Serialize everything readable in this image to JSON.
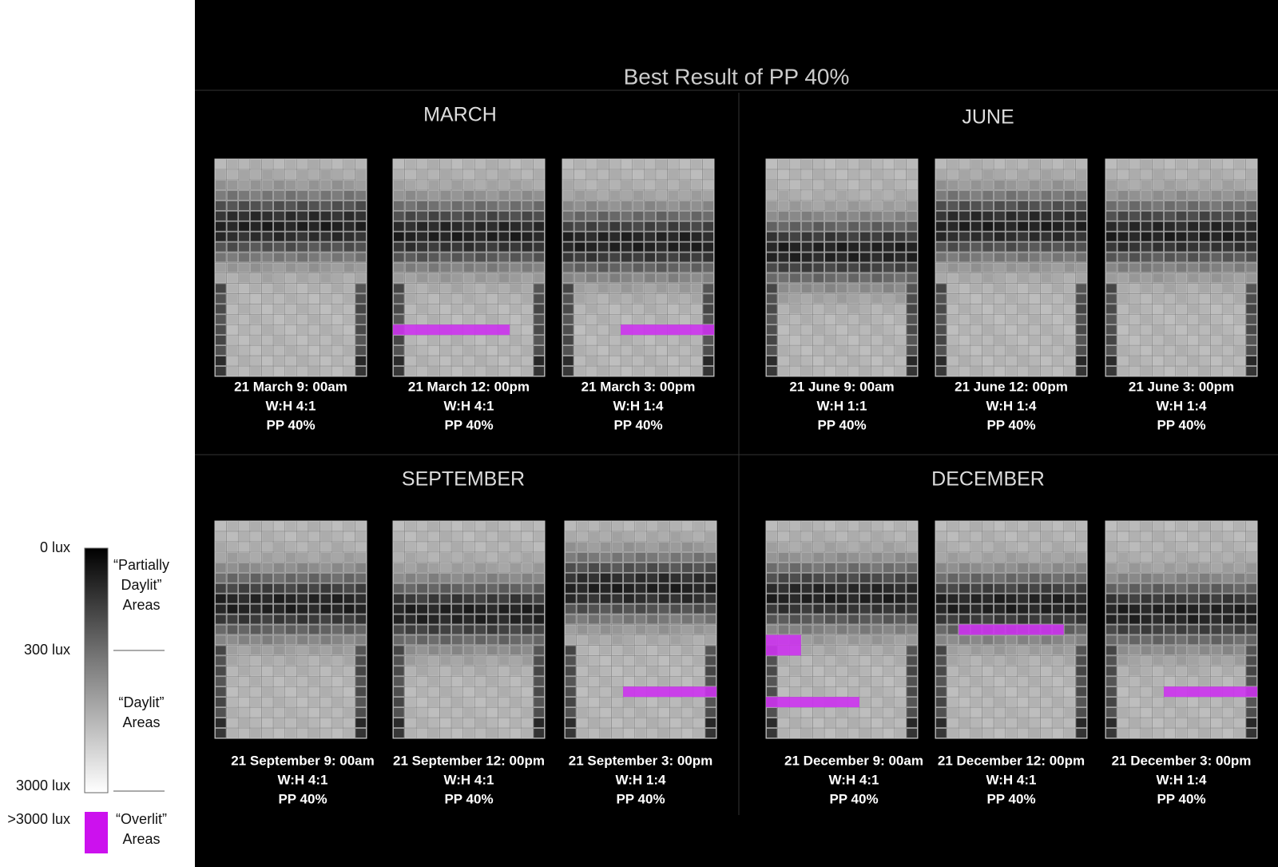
{
  "title": "Best Result of PP 40%",
  "legend": {
    "scale_labels": [
      "0 lux",
      "300 lux",
      "3000 lux",
      ">3000 lux"
    ],
    "zones": [
      [
        "“Partially",
        "Daylit”",
        "Areas"
      ],
      [
        "“Daylit”",
        "Areas"
      ],
      [
        "“Overlit”",
        "Areas"
      ]
    ]
  },
  "panels": [
    {
      "month": "MARCH",
      "cases": [
        {
          "lines": [
            "21 March 9: 00am",
            "W:H 4:1",
            "PP 40%"
          ]
        },
        {
          "lines": [
            "21 March 12: 00pm",
            "W:H 4:1",
            "PP 40%"
          ]
        },
        {
          "lines": [
            "21 March 3: 00pm",
            "W:H 1:4",
            "PP 40%"
          ]
        }
      ]
    },
    {
      "month": "JUNE",
      "cases": [
        {
          "lines": [
            "21 June 9: 00am",
            "W:H 1:1",
            "PP 40%"
          ]
        },
        {
          "lines": [
            "21 June 12: 00pm",
            "W:H 1:4",
            "PP 40%"
          ]
        },
        {
          "lines": [
            "21 June 3: 00pm",
            "W:H 1:4",
            "PP 40%"
          ]
        }
      ]
    },
    {
      "month": "SEPTEMBER",
      "cases": [
        {
          "lines": [
            "21 September 9: 00am",
            "W:H 4:1",
            "PP 40%"
          ]
        },
        {
          "lines": [
            "21 September 12: 00pm",
            "W:H 4:1",
            "PP 40%"
          ]
        },
        {
          "lines": [
            "21 September 3: 00pm",
            "W:H 1:4",
            "PP 40%"
          ]
        }
      ]
    },
    {
      "month": "DECEMBER",
      "cases": [
        {
          "lines": [
            "21 December 9: 00am",
            "W:H 4:1",
            "PP 40%"
          ]
        },
        {
          "lines": [
            "21 December 12: 00pm",
            "W:H 4:1",
            "PP 40%"
          ]
        },
        {
          "lines": [
            "21 December 3: 00pm",
            "W:H 1:4",
            "PP 40%"
          ]
        }
      ]
    }
  ]
}
